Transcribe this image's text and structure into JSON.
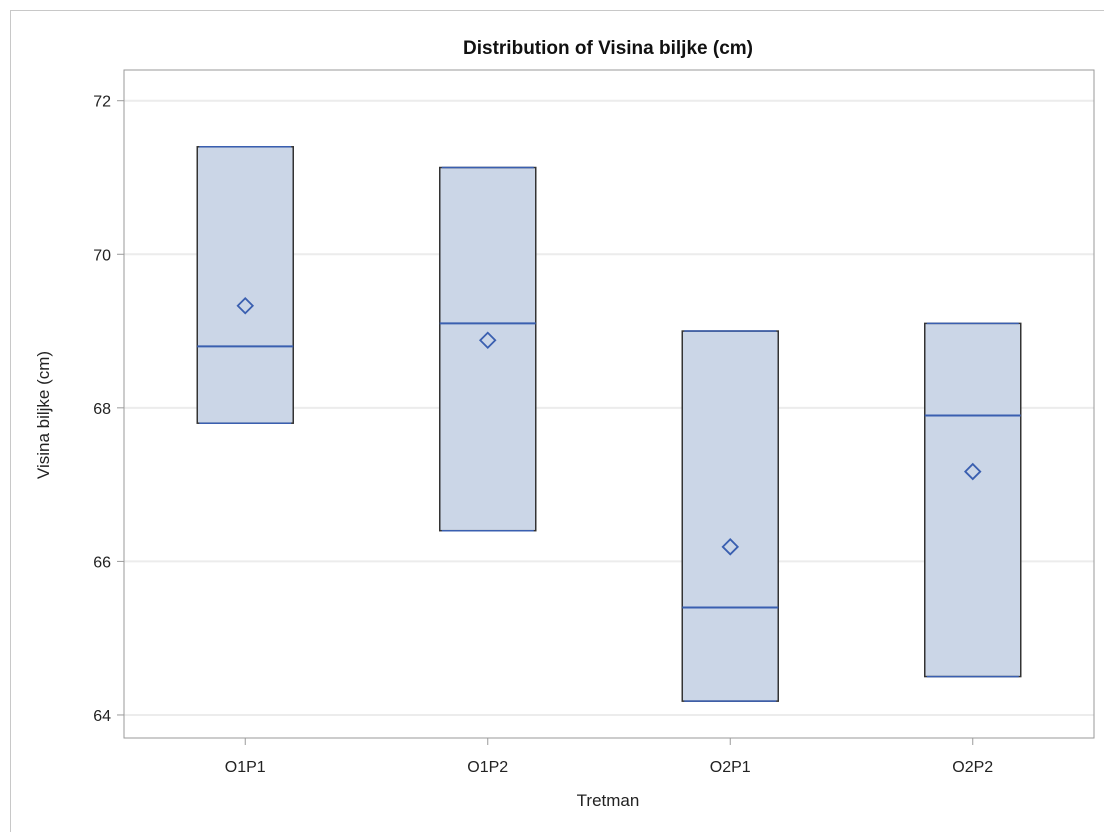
{
  "chart_data": {
    "type": "box",
    "title": "Distribution of Visina biljke (cm)",
    "xlabel": "Tretman",
    "ylabel": "Visina biljke (cm)",
    "ylim": [
      63.7,
      72.4
    ],
    "yticks": [
      64,
      66,
      68,
      70,
      72
    ],
    "grid": true,
    "categories": [
      "O1P1",
      "O1P2",
      "O2P1",
      "O2P2"
    ],
    "boxes": [
      {
        "category": "O1P1",
        "min": 67.8,
        "q1": 67.8,
        "median": 68.8,
        "q3": 71.4,
        "max": 71.4,
        "mean": 69.33
      },
      {
        "category": "O1P2",
        "min": 66.4,
        "q1": 66.4,
        "median": 69.1,
        "q3": 71.13,
        "max": 71.13,
        "mean": 68.88
      },
      {
        "category": "O2P1",
        "min": 64.18,
        "q1": 64.18,
        "median": 65.4,
        "q3": 69.0,
        "max": 69.0,
        "mean": 66.19
      },
      {
        "category": "O2P2",
        "min": 64.5,
        "q1": 64.5,
        "median": 67.9,
        "q3": 69.1,
        "max": 69.1,
        "mean": 67.17
      }
    ],
    "colors": {
      "box_fill": "#cbd6e7",
      "box_border": "#333333",
      "median": "#3a5fb0",
      "mean_marker": "#3a5fb0",
      "grid": "#ececec",
      "axis": "#9a9a9a"
    }
  }
}
